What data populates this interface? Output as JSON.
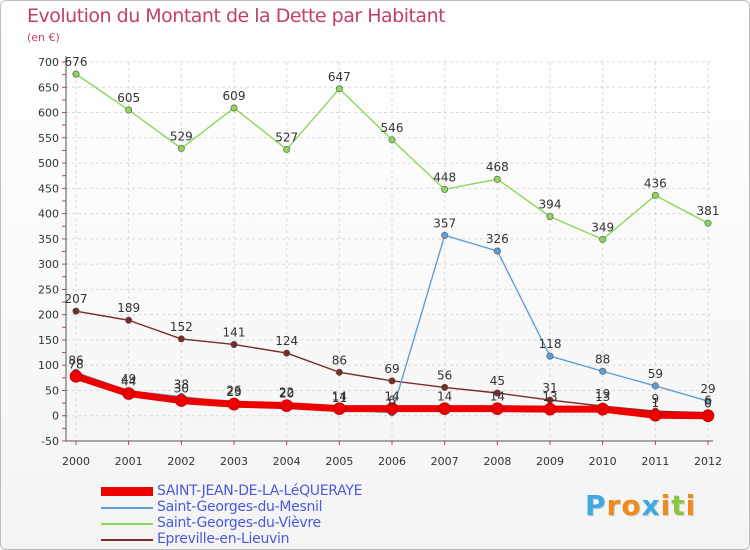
{
  "title": "Evolution du Montant de la Dette par Habitant",
  "subtitle": "(en €)",
  "logo": {
    "letters": [
      "P",
      "r",
      "o",
      "x",
      "i",
      "t",
      "i"
    ],
    "colors": [
      "#3fa9e0",
      "#f08a1c",
      "#f08a1c",
      "#3fa9e0",
      "#f08a1c",
      "#8cc63f",
      "#f08a1c"
    ]
  },
  "chart_data": {
    "type": "line",
    "title": "Evolution du Montant de la Dette par Habitant",
    "ylabel": "(en €)",
    "x": [
      "2000",
      "2001",
      "2002",
      "2003",
      "2004",
      "2005",
      "2006",
      "2007",
      "2008",
      "2009",
      "2010",
      "2011",
      "2012"
    ],
    "ylim": [
      -50,
      700
    ],
    "yticks": [
      "-50",
      "0",
      "50",
      "100",
      "150",
      "200",
      "250",
      "300",
      "350",
      "400",
      "450",
      "500",
      "550",
      "600",
      "650",
      "700"
    ],
    "grid": true,
    "legend_position": "bottom-left",
    "series": [
      {
        "name": "SAINT-JEAN-DE-LA-LéQUERAYE",
        "color": "#ee0000",
        "values": [
          78,
          44,
          30,
          23,
          20,
          14,
          14,
          14,
          14,
          13,
          13,
          1,
          0
        ],
        "labels": [
          "78",
          "44",
          "30",
          "23",
          "20",
          "14",
          "14",
          "14",
          "14",
          "13",
          "13",
          "1",
          "0"
        ]
      },
      {
        "name": "Saint-Georges-du-Mesnil",
        "color": "#5f9fd6",
        "values": [
          86,
          49,
          38,
          26,
          22,
          11,
          6,
          357,
          326,
          118,
          88,
          59,
          29
        ],
        "labels": [
          "86",
          "49",
          "38",
          "26",
          "22",
          "11",
          "6",
          "357",
          "326",
          "118",
          "88",
          "59",
          "29"
        ]
      },
      {
        "name": "Saint-Georges-du-Vièvre",
        "color": "#8cd65a",
        "values": [
          676,
          605,
          529,
          609,
          527,
          647,
          546,
          448,
          468,
          394,
          349,
          436,
          381
        ],
        "labels": [
          "676",
          "605",
          "529",
          "609",
          "527",
          "647",
          "546",
          "448",
          "468",
          "394",
          "349",
          "436",
          "381"
        ]
      },
      {
        "name": "Epreville-en-Lieuvin",
        "color": "#7b2a2a",
        "values": [
          207,
          189,
          152,
          141,
          124,
          86,
          69,
          56,
          45,
          31,
          19,
          9,
          6
        ],
        "labels": [
          "207",
          "189",
          "152",
          "141",
          "124",
          "86",
          "69",
          "56",
          "45",
          "31",
          "19",
          "9",
          "6"
        ]
      }
    ]
  }
}
